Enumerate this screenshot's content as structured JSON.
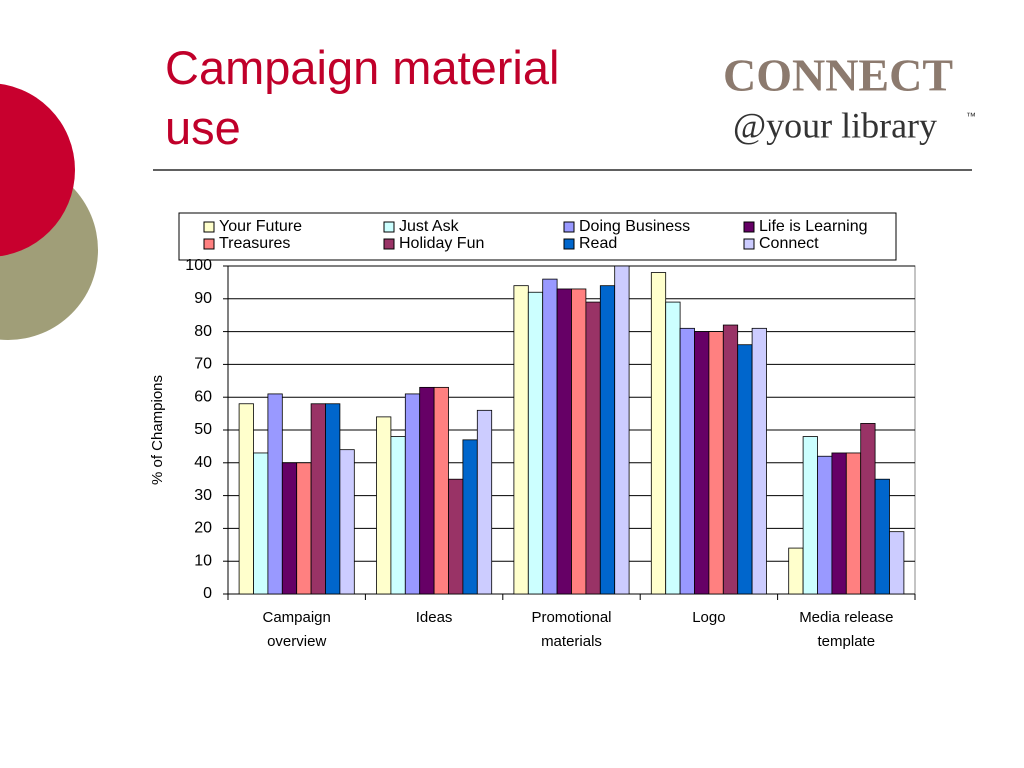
{
  "title": "Campaign material use",
  "logo": {
    "word": "CONNECT",
    "tagline": "@your library",
    "mark": "™"
  },
  "chart_data": {
    "type": "bar",
    "y_label": "% of Champions",
    "categories": [
      "Campaign overview",
      "Ideas",
      "Promotional materials",
      "Logo",
      "Media release template"
    ],
    "series": [
      {
        "name": "Your Future",
        "color": "#ffffcc",
        "values": [
          58,
          54,
          94,
          98,
          14
        ]
      },
      {
        "name": "Just Ask",
        "color": "#ccffff",
        "values": [
          43,
          48,
          92,
          89,
          48
        ]
      },
      {
        "name": "Doing Business",
        "color": "#9999ff",
        "values": [
          61,
          61,
          96,
          81,
          42
        ]
      },
      {
        "name": "Life is Learning",
        "color": "#660066",
        "values": [
          40,
          63,
          93,
          80,
          43
        ]
      },
      {
        "name": "Treasures",
        "color": "#ff8080",
        "values": [
          40,
          63,
          93,
          80,
          43
        ]
      },
      {
        "name": "Holiday Fun",
        "color": "#993366",
        "values": [
          58,
          35,
          89,
          82,
          52
        ]
      },
      {
        "name": "Read",
        "color": "#0066cc",
        "values": [
          58,
          47,
          94,
          76,
          35
        ]
      },
      {
        "name": "Connect",
        "color": "#ccccff",
        "values": [
          44,
          56,
          100,
          81,
          19
        ]
      }
    ],
    "ylim": [
      0,
      100
    ],
    "yticks": [
      0,
      10,
      20,
      30,
      40,
      50,
      60,
      70,
      80,
      90,
      100
    ],
    "grid": true
  }
}
